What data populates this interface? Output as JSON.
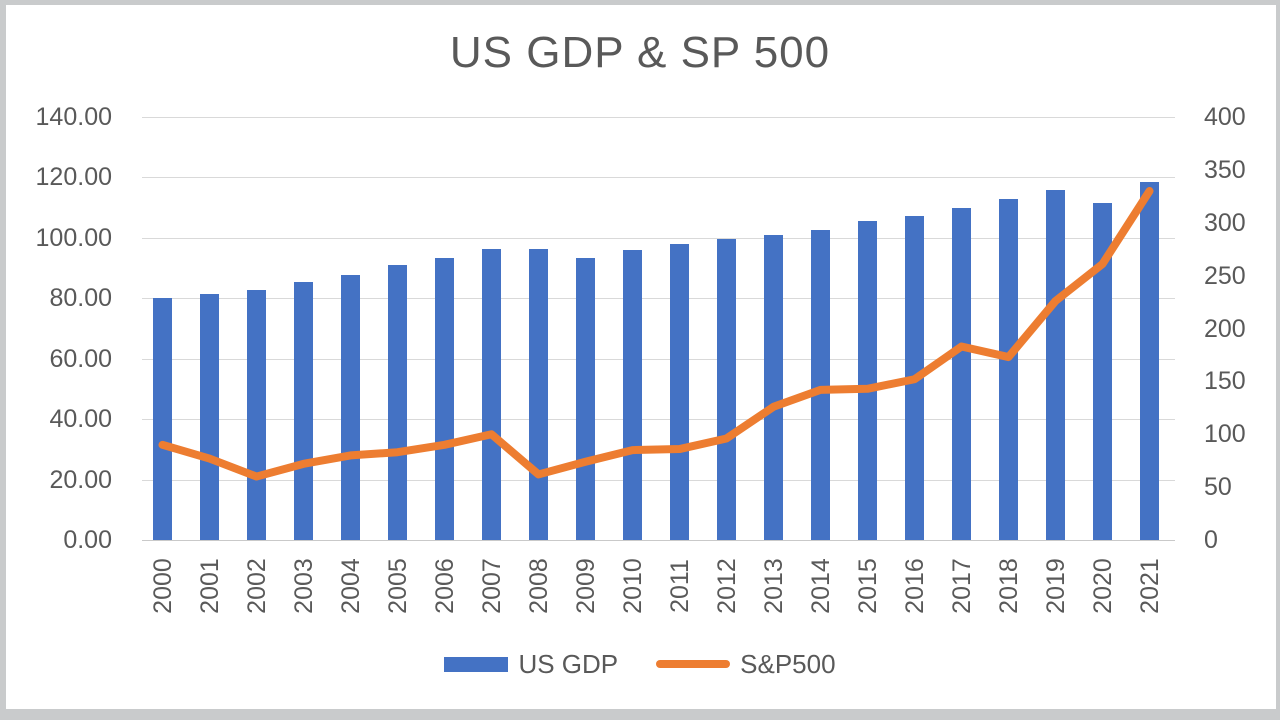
{
  "chart_data": {
    "type": "combo",
    "title": "US GDP & SP 500",
    "categories": [
      "2000",
      "2001",
      "2002",
      "2003",
      "2004",
      "2005",
      "2006",
      "2007",
      "2008",
      "2009",
      "2010",
      "2011",
      "2012",
      "2013",
      "2014",
      "2015",
      "2016",
      "2017",
      "2018",
      "2019",
      "2020",
      "2021"
    ],
    "series": [
      {
        "name": "US GDP",
        "type": "bar",
        "axis": "left",
        "color": "#4472C4",
        "values": [
          80.2,
          81.3,
          82.9,
          85.3,
          87.6,
          91.0,
          93.5,
          96.2,
          96.2,
          93.5,
          96.0,
          97.9,
          99.6,
          101.0,
          102.5,
          105.5,
          107.3,
          109.8,
          113.0,
          115.8,
          111.4,
          118.5
        ]
      },
      {
        "name": "S&P500",
        "type": "line",
        "axis": "right",
        "color": "#ED7D31",
        "values": [
          90,
          77,
          60,
          72,
          80,
          83,
          90,
          100,
          62,
          74,
          85,
          86,
          96,
          126,
          142,
          143,
          152,
          183,
          173,
          226,
          261,
          330
        ]
      }
    ],
    "left_axis": {
      "min": 0,
      "max": 140,
      "ticks": [
        "140.00",
        "120.00",
        "100.00",
        "80.00",
        "60.00",
        "40.00",
        "20.00",
        "0.00"
      ]
    },
    "right_axis": {
      "min": 0,
      "max": 400,
      "ticks": [
        "400",
        "350",
        "300",
        "250",
        "200",
        "150",
        "100",
        "50",
        "0"
      ]
    },
    "grid": true,
    "legend_position": "bottom",
    "text_color": "#595959",
    "gridline_color": "#D9D9D9"
  }
}
